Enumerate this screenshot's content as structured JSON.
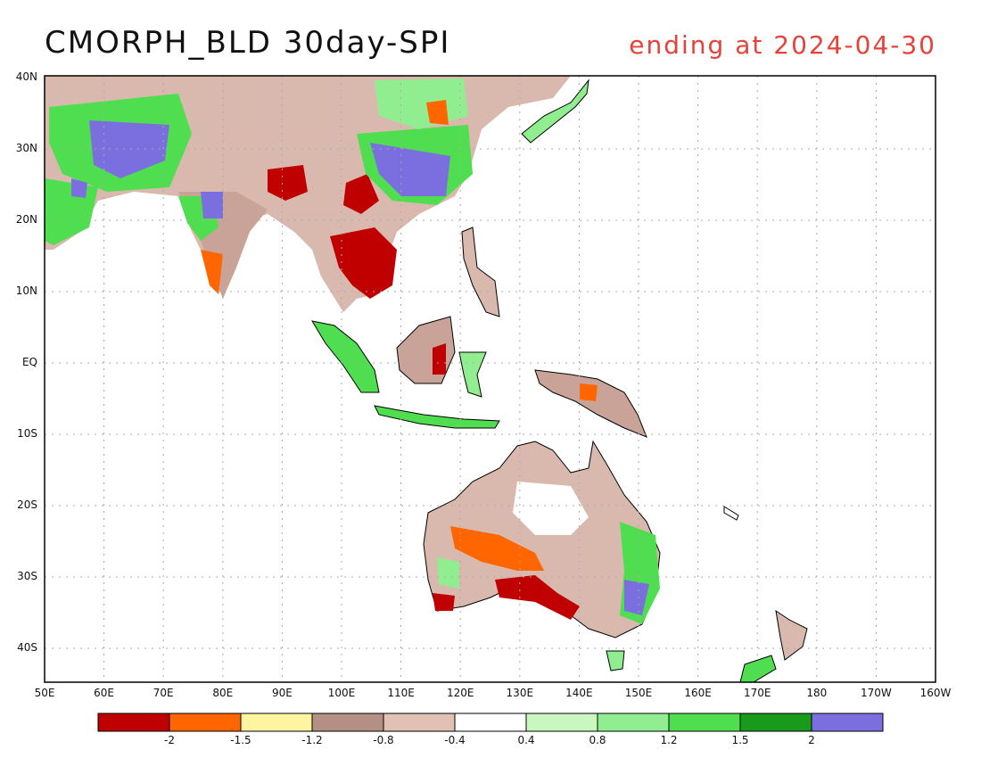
{
  "title_left": "CMORPH_BLD 30day-SPI",
  "title_right": "ending at 2024-04-30",
  "lat_labels": [
    "40N",
    "30N",
    "20N",
    "10N",
    "EQ",
    "10S",
    "20S",
    "30S",
    "40S"
  ],
  "lon_labels": [
    "50E",
    "60E",
    "70E",
    "80E",
    "90E",
    "100E",
    "110E",
    "120E",
    "130E",
    "140E",
    "150E",
    "160E",
    "170E",
    "180",
    "170W",
    "160W"
  ],
  "colorbar": {
    "colors": [
      "#c00000",
      "#ff6600",
      "#fff5a0",
      "#b48f84",
      "#e0c1b4",
      "#ffffff",
      "#c8f7c0",
      "#90ee90",
      "#4fde4f",
      "#1a9a1a",
      "#7b6fe0"
    ],
    "labels": [
      "-2",
      "-1.5",
      "-1.2",
      "-0.8",
      "-0.4",
      "0.4",
      "0.8",
      "1.2",
      "1.5",
      "2"
    ]
  },
  "colors": {
    "grid": "#aaaaaa",
    "coast": "#000000",
    "frame": "#000000"
  }
}
